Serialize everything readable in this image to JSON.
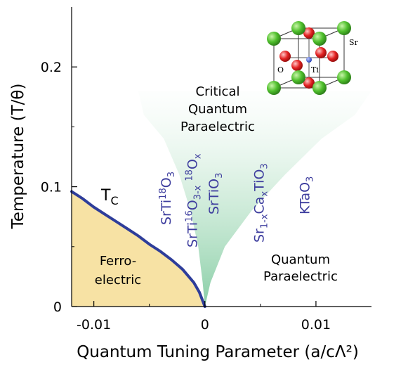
{
  "chart_data": {
    "type": "area",
    "xlabel": "Quantum Tuning Parameter (a/cΛ²)",
    "ylabel": "Temperature (T/θ)",
    "xlim": [
      -0.012,
      0.015
    ],
    "ylim": [
      0,
      0.25
    ],
    "x_ticks": [
      {
        "value": -0.01,
        "label": "-0.01"
      },
      {
        "value": 0,
        "label": "0"
      },
      {
        "value": 0.01,
        "label": "0.01"
      }
    ],
    "y_ticks": [
      {
        "value": 0,
        "label": "0"
      },
      {
        "value": 0.1,
        "label": "0.1"
      },
      {
        "value": 0.2,
        "label": "0.2"
      }
    ],
    "series": [
      {
        "name": "T_C",
        "x": [
          -0.012,
          -0.011,
          -0.01,
          -0.009,
          -0.008,
          -0.007,
          -0.006,
          -0.005,
          -0.004,
          -0.003,
          -0.002,
          -0.001,
          -0.0005,
          0
        ],
        "y": [
          0.096,
          0.09,
          0.083,
          0.077,
          0.071,
          0.065,
          0.059,
          0.052,
          0.046,
          0.039,
          0.031,
          0.02,
          0.012,
          0
        ]
      }
    ],
    "crossover_band": {
      "x_left": [
        0,
        -0.0002,
        -0.0006,
        -0.0013,
        -0.0023,
        -0.0037,
        -0.0055,
        -0.006
      ],
      "x_right": [
        0,
        0.0005,
        0.0018,
        0.0042,
        0.0072,
        0.0105,
        0.0135,
        0.015
      ],
      "y": [
        0,
        0.02,
        0.05,
        0.08,
        0.11,
        0.14,
        0.16,
        0.18
      ]
    },
    "colors": {
      "tc_line": "#2e3d9a",
      "ferro_fill": "#f7e2a4",
      "band_fill": "#8fd1a8",
      "material_text": "#3d3d9e"
    },
    "annotations": {
      "tc_label": "T",
      "tc_subscript": "C",
      "region_ferro": [
        "Ferro-",
        "electric"
      ],
      "region_critical": [
        "Critical",
        "Quantum",
        "Paraelectric"
      ],
      "region_quantum": [
        "Quantum",
        "Paraelectric"
      ]
    },
    "materials": [
      {
        "x": -0.0031,
        "base": "SrTi",
        "parts": [
          [
            "SrTi",
            ""
          ],
          [
            "18",
            "super"
          ],
          [
            "O",
            ""
          ],
          [
            "3",
            "sub"
          ]
        ]
      },
      {
        "x": -0.0007,
        "parts": [
          [
            "SrTi",
            ""
          ],
          [
            "16",
            "super"
          ],
          [
            "O",
            ""
          ],
          [
            "3-x",
            "sub"
          ],
          [
            " ",
            ""
          ],
          [
            "18",
            "super"
          ],
          [
            "O",
            ""
          ],
          [
            "x",
            "sub"
          ]
        ]
      },
      {
        "x": 0.0012,
        "parts": [
          [
            "SrTiO",
            ""
          ],
          [
            "3",
            "sub"
          ]
        ]
      },
      {
        "x": 0.0053,
        "parts": [
          [
            "Sr",
            ""
          ],
          [
            "1-x",
            "sub"
          ],
          [
            "Ca",
            ""
          ],
          [
            "x",
            "sub"
          ],
          [
            "TiO",
            ""
          ],
          [
            "3",
            "sub"
          ]
        ]
      },
      {
        "x": 0.0094,
        "parts": [
          [
            "KTaO",
            ""
          ],
          [
            "3",
            "sub"
          ]
        ]
      }
    ],
    "inset_labels": {
      "o": "O",
      "ti": "Ti",
      "sr": "Sr"
    },
    "grid": false,
    "legend": "none"
  }
}
